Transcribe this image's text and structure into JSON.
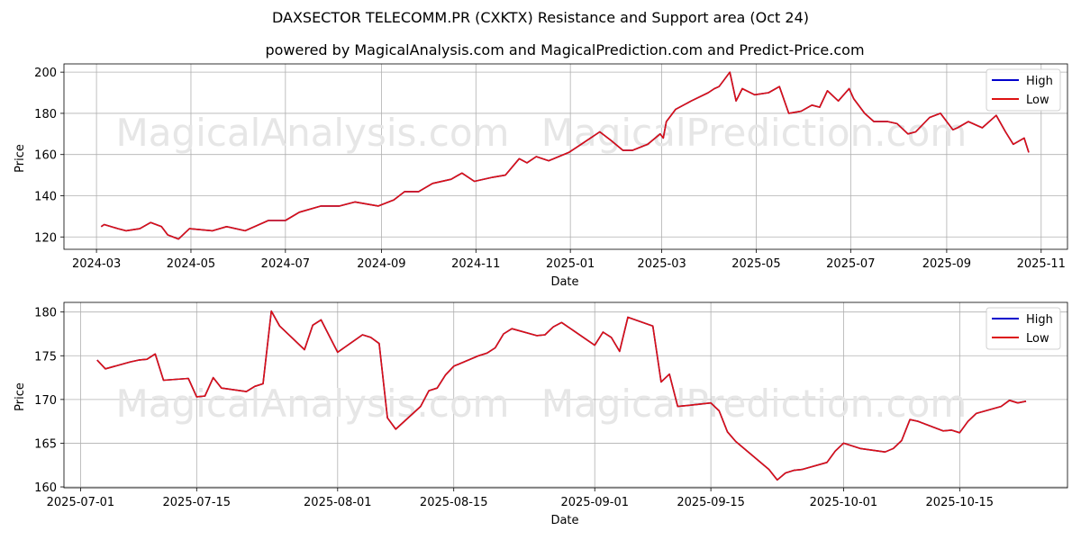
{
  "title": "DAXSECTOR TELECOMM.PR (CXKTX) Resistance and Support area (Oct 24)",
  "subtitle": "powered by MagicalAnalysis.com and MagicalPrediction.com and Predict-Price.com",
  "watermarks": [
    "MagicalAnalysis.com",
    "MagicalPrediction.com"
  ],
  "colors": {
    "high": "#0000cc",
    "low": "#dd1111"
  },
  "chart_data": [
    {
      "type": "line",
      "xlabel": "Date",
      "ylabel": "Price",
      "ylim": [
        114,
        204
      ],
      "xlim": [
        "2024-02-09",
        "2025-11-18"
      ],
      "grid": true,
      "legend_position": "top-right",
      "x_ticks": [
        "2024-03",
        "2024-05",
        "2024-07",
        "2024-09",
        "2024-11",
        "2025-01",
        "2025-03",
        "2025-05",
        "2025-07",
        "2025-09",
        "2025-11"
      ],
      "x_tick_dates": [
        "2024-03-01",
        "2024-05-01",
        "2024-07-01",
        "2024-09-01",
        "2024-11-01",
        "2025-01-01",
        "2025-03-01",
        "2025-05-01",
        "2025-07-01",
        "2025-09-01",
        "2025-11-01"
      ],
      "y_ticks": [
        120,
        140,
        160,
        180,
        200
      ],
      "series": [
        {
          "name": "High",
          "x": [
            "2024-03-04",
            "2024-03-06",
            "2024-03-15",
            "2024-03-20",
            "2024-03-29",
            "2024-04-05",
            "2024-04-12",
            "2024-04-16",
            "2024-04-23",
            "2024-04-30",
            "2024-05-15",
            "2024-05-24",
            "2024-06-05",
            "2024-06-20",
            "2024-07-01",
            "2024-07-10",
            "2024-07-24",
            "2024-08-05",
            "2024-08-15",
            "2024-08-30",
            "2024-09-09",
            "2024-09-16",
            "2024-09-25",
            "2024-10-04",
            "2024-10-16",
            "2024-10-23",
            "2024-10-31",
            "2024-11-12",
            "2024-11-20",
            "2024-11-29",
            "2024-12-04",
            "2024-12-10",
            "2024-12-18",
            "2024-12-31",
            "2025-01-08",
            "2025-01-20",
            "2025-01-27",
            "2025-02-04",
            "2025-02-10",
            "2025-02-20",
            "2025-02-28",
            "2025-03-02",
            "2025-03-04",
            "2025-03-10",
            "2025-03-20",
            "2025-03-31",
            "2025-04-04",
            "2025-04-07",
            "2025-04-10",
            "2025-04-14",
            "2025-04-18",
            "2025-04-22",
            "2025-04-30",
            "2025-05-09",
            "2025-05-16",
            "2025-05-22",
            "2025-05-30",
            "2025-06-06",
            "2025-06-11",
            "2025-06-16",
            "2025-06-23",
            "2025-06-30",
            "2025-07-03",
            "2025-07-10",
            "2025-07-16",
            "2025-07-25",
            "2025-07-31",
            "2025-08-07",
            "2025-08-12",
            "2025-08-21",
            "2025-08-28",
            "2025-09-05",
            "2025-09-08",
            "2025-09-15",
            "2025-09-24",
            "2025-10-03",
            "2025-10-09",
            "2025-10-14",
            "2025-10-21",
            "2025-10-24"
          ],
          "values": [
            125,
            126,
            124,
            123,
            124,
            127,
            125,
            121,
            119,
            124,
            123,
            125,
            123,
            128,
            128,
            132,
            135,
            135,
            137,
            135,
            138,
            142,
            142,
            146,
            148,
            151,
            147,
            149,
            150,
            158,
            156,
            159,
            157,
            161,
            165,
            171,
            167,
            162,
            162,
            165,
            170,
            168,
            176,
            182,
            186,
            190,
            192,
            193,
            196,
            200,
            186,
            192,
            189,
            190,
            193,
            180,
            181,
            184,
            183,
            191,
            186,
            192,
            187,
            180,
            176,
            176,
            175,
            170,
            171,
            178,
            180,
            172,
            173,
            176,
            173,
            179,
            171,
            165,
            168,
            161
          ],
          "smooth": false
        },
        {
          "name": "Low",
          "x": [
            "2024-03-04",
            "2024-03-06",
            "2024-03-15",
            "2024-03-20",
            "2024-03-29",
            "2024-04-05",
            "2024-04-12",
            "2024-04-16",
            "2024-04-23",
            "2024-04-30",
            "2024-05-15",
            "2024-05-24",
            "2024-06-05",
            "2024-06-20",
            "2024-07-01",
            "2024-07-10",
            "2024-07-24",
            "2024-08-05",
            "2024-08-15",
            "2024-08-30",
            "2024-09-09",
            "2024-09-16",
            "2024-09-25",
            "2024-10-04",
            "2024-10-16",
            "2024-10-23",
            "2024-10-31",
            "2024-11-12",
            "2024-11-20",
            "2024-11-29",
            "2024-12-04",
            "2024-12-10",
            "2024-12-18",
            "2024-12-31",
            "2025-01-08",
            "2025-01-20",
            "2025-01-27",
            "2025-02-04",
            "2025-02-10",
            "2025-02-20",
            "2025-02-28",
            "2025-03-02",
            "2025-03-04",
            "2025-03-10",
            "2025-03-20",
            "2025-03-31",
            "2025-04-04",
            "2025-04-07",
            "2025-04-10",
            "2025-04-14",
            "2025-04-18",
            "2025-04-22",
            "2025-04-30",
            "2025-05-09",
            "2025-05-16",
            "2025-05-22",
            "2025-05-30",
            "2025-06-06",
            "2025-06-11",
            "2025-06-16",
            "2025-06-23",
            "2025-06-30",
            "2025-07-03",
            "2025-07-10",
            "2025-07-16",
            "2025-07-25",
            "2025-07-31",
            "2025-08-07",
            "2025-08-12",
            "2025-08-21",
            "2025-08-28",
            "2025-09-05",
            "2025-09-08",
            "2025-09-15",
            "2025-09-24",
            "2025-10-03",
            "2025-10-09",
            "2025-10-14",
            "2025-10-21",
            "2025-10-24"
          ],
          "values": [
            125,
            126,
            124,
            123,
            124,
            127,
            125,
            121,
            119,
            124,
            123,
            125,
            123,
            128,
            128,
            132,
            135,
            135,
            137,
            135,
            138,
            142,
            142,
            146,
            148,
            151,
            147,
            149,
            150,
            158,
            156,
            159,
            157,
            161,
            165,
            171,
            167,
            162,
            162,
            165,
            170,
            168,
            176,
            182,
            186,
            190,
            192,
            193,
            196,
            200,
            186,
            192,
            189,
            190,
            193,
            180,
            181,
            184,
            183,
            191,
            186,
            192,
            187,
            180,
            176,
            176,
            175,
            170,
            171,
            178,
            180,
            172,
            173,
            176,
            173,
            179,
            171,
            165,
            168,
            161
          ],
          "smooth": false
        }
      ]
    },
    {
      "type": "line",
      "xlabel": "Date",
      "ylabel": "Price",
      "ylim": [
        159.9,
        181.1
      ],
      "xlim": [
        "2025-06-29",
        "2025-10-28"
      ],
      "grid": true,
      "legend_position": "top-right",
      "x_ticks": [
        "2025-07-01",
        "2025-07-15",
        "2025-08-01",
        "2025-08-15",
        "2025-09-01",
        "2025-09-15",
        "2025-10-01",
        "2025-10-15"
      ],
      "y_ticks": [
        160,
        165,
        170,
        175,
        180
      ],
      "series": [
        {
          "name": "High",
          "x": [
            "2025-07-03",
            "2025-07-04",
            "2025-07-07",
            "2025-07-08",
            "2025-07-09",
            "2025-07-10",
            "2025-07-11",
            "2025-07-14",
            "2025-07-15",
            "2025-07-16",
            "2025-07-17",
            "2025-07-18",
            "2025-07-21",
            "2025-07-22",
            "2025-07-23",
            "2025-07-24",
            "2025-07-25",
            "2025-07-28",
            "2025-07-29",
            "2025-07-30",
            "2025-08-01",
            "2025-08-04",
            "2025-08-05",
            "2025-08-06",
            "2025-08-07",
            "2025-08-08",
            "2025-08-11",
            "2025-08-12",
            "2025-08-13",
            "2025-08-14",
            "2025-08-15",
            "2025-08-18",
            "2025-08-19",
            "2025-08-20",
            "2025-08-21",
            "2025-08-22",
            "2025-08-25",
            "2025-08-26",
            "2025-08-27",
            "2025-08-28",
            "2025-09-01",
            "2025-09-02",
            "2025-09-03",
            "2025-09-04",
            "2025-09-05",
            "2025-09-08",
            "2025-09-09",
            "2025-09-10",
            "2025-09-11",
            "2025-09-12",
            "2025-09-15",
            "2025-09-16",
            "2025-09-17",
            "2025-09-18",
            "2025-09-22",
            "2025-09-23",
            "2025-09-24",
            "2025-09-25",
            "2025-09-26",
            "2025-09-29",
            "2025-09-30",
            "2025-10-01",
            "2025-10-03",
            "2025-10-06",
            "2025-10-07",
            "2025-10-08",
            "2025-10-09",
            "2025-10-10",
            "2025-10-13",
            "2025-10-14",
            "2025-10-15",
            "2025-10-16",
            "2025-10-17",
            "2025-10-20",
            "2025-10-21",
            "2025-10-22",
            "2025-10-23"
          ],
          "values": [
            174.5,
            173.5,
            174.3,
            174.5,
            174.6,
            175.2,
            172.2,
            172.4,
            170.3,
            170.4,
            172.5,
            171.3,
            170.9,
            171.5,
            171.8,
            180.1,
            178.4,
            175.7,
            178.5,
            179.1,
            175.4,
            177.4,
            177.1,
            176.4,
            167.9,
            166.6,
            169.2,
            171.0,
            171.3,
            172.8,
            173.8,
            175.0,
            175.3,
            175.9,
            177.5,
            178.1,
            177.3,
            177.4,
            178.3,
            178.8,
            176.2,
            177.7,
            177.1,
            175.5,
            179.4,
            178.4,
            172.0,
            172.9,
            169.2,
            169.3,
            169.6,
            168.7,
            166.3,
            165.2,
            162.0,
            160.8,
            161.6,
            161.9,
            162.0,
            162.8,
            164.1,
            165.0,
            164.4,
            164.0,
            164.4,
            165.3,
            167.7,
            167.5,
            166.4,
            166.5,
            166.2,
            167.5,
            168.4,
            169.2,
            169.9,
            169.6,
            169.8
          ],
          "smooth": false
        },
        {
          "name": "Low",
          "x": [
            "2025-07-03",
            "2025-07-04",
            "2025-07-07",
            "2025-07-08",
            "2025-07-09",
            "2025-07-10",
            "2025-07-11",
            "2025-07-14",
            "2025-07-15",
            "2025-07-16",
            "2025-07-17",
            "2025-07-18",
            "2025-07-21",
            "2025-07-22",
            "2025-07-23",
            "2025-07-24",
            "2025-07-25",
            "2025-07-28",
            "2025-07-29",
            "2025-07-30",
            "2025-08-01",
            "2025-08-04",
            "2025-08-05",
            "2025-08-06",
            "2025-08-07",
            "2025-08-08",
            "2025-08-11",
            "2025-08-12",
            "2025-08-13",
            "2025-08-14",
            "2025-08-15",
            "2025-08-18",
            "2025-08-19",
            "2025-08-20",
            "2025-08-21",
            "2025-08-22",
            "2025-08-25",
            "2025-08-26",
            "2025-08-27",
            "2025-08-28",
            "2025-09-01",
            "2025-09-02",
            "2025-09-03",
            "2025-09-04",
            "2025-09-05",
            "2025-09-08",
            "2025-09-09",
            "2025-09-10",
            "2025-09-11",
            "2025-09-12",
            "2025-09-15",
            "2025-09-16",
            "2025-09-17",
            "2025-09-18",
            "2025-09-22",
            "2025-09-23",
            "2025-09-24",
            "2025-09-25",
            "2025-09-26",
            "2025-09-29",
            "2025-09-30",
            "2025-10-01",
            "2025-10-03",
            "2025-10-06",
            "2025-10-07",
            "2025-10-08",
            "2025-10-09",
            "2025-10-10",
            "2025-10-13",
            "2025-10-14",
            "2025-10-15",
            "2025-10-16",
            "2025-10-17",
            "2025-10-20",
            "2025-10-21",
            "2025-10-22",
            "2025-10-23"
          ],
          "values": [
            174.5,
            173.5,
            174.3,
            174.5,
            174.6,
            175.2,
            172.2,
            172.4,
            170.3,
            170.4,
            172.5,
            171.3,
            170.9,
            171.5,
            171.8,
            180.1,
            178.4,
            175.7,
            178.5,
            179.1,
            175.4,
            177.4,
            177.1,
            176.4,
            167.9,
            166.6,
            169.2,
            171.0,
            171.3,
            172.8,
            173.8,
            175.0,
            175.3,
            175.9,
            177.5,
            178.1,
            177.3,
            177.4,
            178.3,
            178.8,
            176.2,
            177.7,
            177.1,
            175.5,
            179.4,
            178.4,
            172.0,
            172.9,
            169.2,
            169.3,
            169.6,
            168.7,
            166.3,
            165.2,
            162.0,
            160.8,
            161.6,
            161.9,
            162.0,
            162.8,
            164.1,
            165.0,
            164.4,
            164.0,
            164.4,
            165.3,
            167.7,
            167.5,
            166.4,
            166.5,
            166.2,
            167.5,
            168.4,
            169.2,
            169.9,
            169.6,
            169.8
          ],
          "smooth": false
        }
      ]
    }
  ]
}
